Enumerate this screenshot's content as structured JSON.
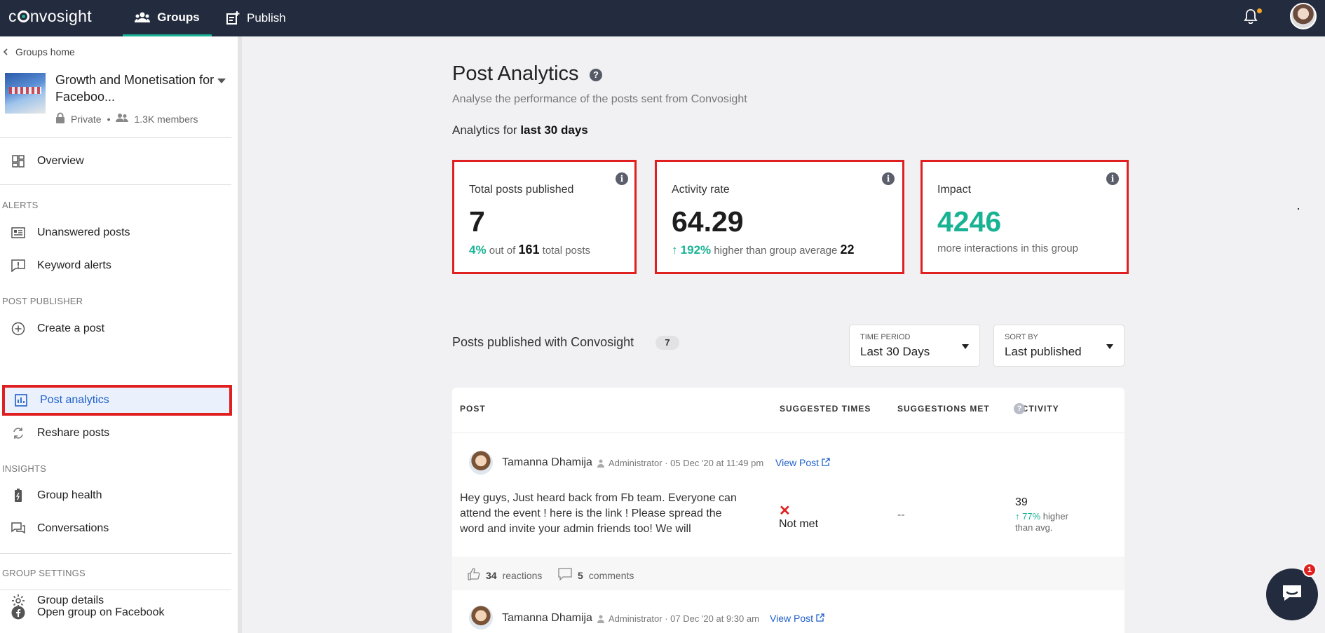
{
  "app": {
    "logo": "convosight"
  },
  "topnav": {
    "tabs": [
      {
        "label": "Groups",
        "active": true
      },
      {
        "label": "Publish"
      }
    ],
    "notification_dot_color": "#f6a623"
  },
  "sidebar": {
    "back_label": "Groups home",
    "group": {
      "name": "Growth and Monetisation for Faceboo...",
      "privacy": "Private",
      "members": "1.3K members"
    },
    "overview": "Overview",
    "sections": {
      "alerts": "ALERTS",
      "post_publisher": "POST PUBLISHER",
      "insights": "INSIGHTS",
      "group_settings": "GROUP SETTINGS"
    },
    "items": {
      "unanswered": "Unanswered posts",
      "keyword": "Keyword alerts",
      "create": "Create a post",
      "analytics": "Post analytics",
      "reshare": "Reshare posts",
      "health": "Group health",
      "conversations": "Conversations",
      "details": "Group details",
      "facebook": "Open group on Facebook"
    }
  },
  "page": {
    "title": "Post Analytics",
    "help_icon": "?",
    "subtitle": "Analyse the performance of the posts sent from Convosight",
    "period_prefix": "Analytics for",
    "period_value": "last 30 days"
  },
  "cards": {
    "info_icon": "i",
    "total": {
      "label": "Total posts published",
      "value": "7",
      "pct": "4%",
      "out_of": "out of",
      "total": "161",
      "suffix": "total posts"
    },
    "activity": {
      "label": "Activity rate",
      "value": "64.29",
      "pct": "192%",
      "text": "higher than group average",
      "avg": "22"
    },
    "impact": {
      "label": "Impact",
      "value": "4246",
      "text": "more interactions in this group"
    }
  },
  "posts_section": {
    "heading": "Posts published with Convosight",
    "count": "7",
    "time_period": {
      "label": "TIME PERIOD",
      "value": "Last 30 Days"
    },
    "sort_by": {
      "label": "SORT BY",
      "value": "Last published"
    }
  },
  "table": {
    "headers": {
      "post": "POST",
      "suggested": "SUGGESTED TIMES",
      "met": "SUGGESTIONS MET",
      "activity": "ACTIVITY"
    },
    "activity_help": "?",
    "rows": [
      {
        "author": "Tamanna Dhamija",
        "meta": "Administrator · 05 Dec '20 at 11:49 pm",
        "view_link": "View Post",
        "text": "Hey guys, Just heard back from Fb team. Everyone can attend the event ! here is the link ! Please spread the word and invite your admin friends too! We will",
        "suggested": "Not met",
        "met": "--",
        "activity": "39",
        "activity_pct": "77%",
        "activity_more": "higher than avg.",
        "reactions_count": "34",
        "reactions_label": "reactions",
        "comments_count": "5",
        "comments_label": "comments"
      },
      {
        "author": "Tamanna Dhamija",
        "meta": "Administrator · 07 Dec '20 at 9:30 am",
        "view_link": "View Post"
      }
    ]
  },
  "chat": {
    "badge": "1"
  },
  "colors": {
    "accent": "#19b394",
    "highlight": "#e02020",
    "link": "#1f5fc9",
    "topbar": "#232b3e"
  }
}
